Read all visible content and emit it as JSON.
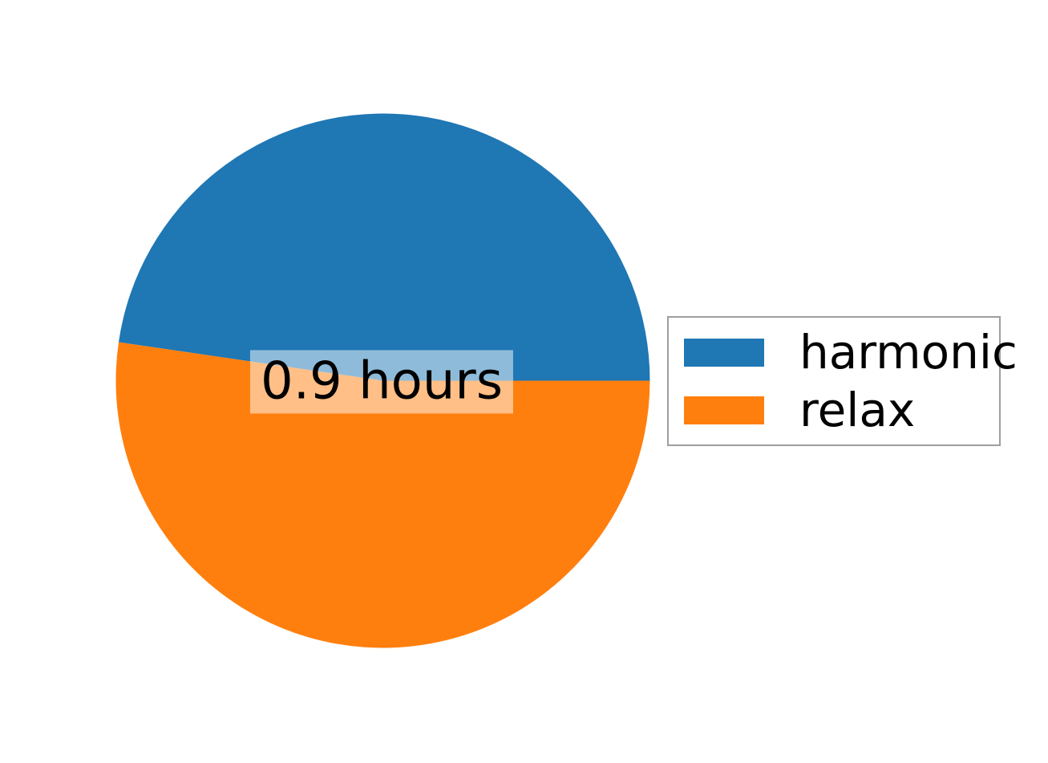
{
  "chart_data": {
    "type": "pie",
    "labels": [
      "harmonic",
      "relax"
    ],
    "values_pct": [
      47.7,
      52.3
    ],
    "colors": [
      "#1f77b4",
      "#ff7f0e"
    ],
    "start_angle_deg": 0,
    "counterclockwise": true,
    "center_label": "0.9 hours",
    "center_label_bg": "rgba(255,255,255,0.5)",
    "legend": {
      "position": "center-right",
      "border_color": "#9e9e9e",
      "background": "#ffffff",
      "entries": [
        {
          "label": "harmonic",
          "color": "#1f77b4"
        },
        {
          "label": "relax",
          "color": "#ff7f0e"
        }
      ]
    }
  }
}
